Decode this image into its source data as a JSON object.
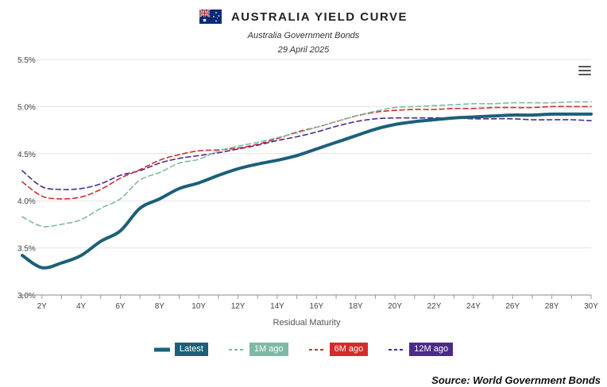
{
  "header": {
    "title": "AUSTRALIA YIELD CURVE",
    "subtitle": "Australia Government Bonds",
    "date": "29 April 2025",
    "flag_icon": "australia-flag-icon"
  },
  "menu": {
    "icon": "hamburger-menu-icon"
  },
  "source": "Source: World Government Bonds",
  "chart_data": {
    "type": "line",
    "title": "AUSTRALIA YIELD CURVE",
    "subtitle": "Australia Government Bonds",
    "xlabel": "Residual Maturity",
    "ylabel": "",
    "xlim": [
      1,
      30
    ],
    "ylim": [
      3.0,
      5.5
    ],
    "x_ticks": [
      2,
      4,
      6,
      8,
      10,
      12,
      14,
      16,
      18,
      20,
      22,
      24,
      26,
      28,
      30
    ],
    "x_tick_labels": [
      "2Y",
      "4Y",
      "6Y",
      "8Y",
      "10Y",
      "12Y",
      "14Y",
      "16Y",
      "18Y",
      "20Y",
      "22Y",
      "24Y",
      "26Y",
      "28Y",
      "30Y"
    ],
    "y_ticks": [
      3.0,
      3.5,
      4.0,
      4.5,
      5.0,
      5.5
    ],
    "y_tick_labels": [
      "3.0%",
      "3.5%",
      "4.0%",
      "4.5%",
      "5.0%",
      "5.5%"
    ],
    "grid": true,
    "legend_position": "bottom-center",
    "series": [
      {
        "name": "Latest",
        "color": "#1b6077",
        "dash": "solid",
        "x": [
          1,
          2,
          3,
          4,
          5,
          6,
          7,
          8,
          9,
          10,
          11,
          12,
          13,
          14,
          15,
          16,
          17,
          18,
          19,
          20,
          21,
          22,
          23,
          24,
          25,
          26,
          27,
          28,
          29,
          30
        ],
        "values": [
          3.42,
          3.29,
          3.34,
          3.42,
          3.57,
          3.68,
          3.92,
          4.02,
          4.13,
          4.19,
          4.27,
          4.34,
          4.39,
          4.43,
          4.48,
          4.55,
          4.62,
          4.69,
          4.76,
          4.81,
          4.84,
          4.86,
          4.88,
          4.89,
          4.9,
          4.91,
          4.91,
          4.92,
          4.92,
          4.92
        ]
      },
      {
        "name": "1M ago",
        "color": "#7fb9a6",
        "dash": "dash",
        "x": [
          1,
          2,
          3,
          4,
          5,
          6,
          7,
          8,
          9,
          10,
          11,
          12,
          13,
          14,
          15,
          16,
          17,
          18,
          19,
          20,
          21,
          22,
          23,
          24,
          25,
          26,
          27,
          28,
          29,
          30
        ],
        "values": [
          3.83,
          3.73,
          3.75,
          3.8,
          3.92,
          4.02,
          4.22,
          4.3,
          4.4,
          4.44,
          4.53,
          4.58,
          4.62,
          4.67,
          4.72,
          4.78,
          4.84,
          4.9,
          4.95,
          4.99,
          5.0,
          5.01,
          5.02,
          5.03,
          5.03,
          5.04,
          5.04,
          5.04,
          5.05,
          5.05
        ]
      },
      {
        "name": "6M ago",
        "color": "#d42a2a",
        "dash": "dash",
        "x": [
          1,
          2,
          3,
          4,
          5,
          6,
          7,
          8,
          9,
          10,
          11,
          12,
          13,
          14,
          15,
          16,
          17,
          18,
          19,
          20,
          21,
          22,
          23,
          24,
          25,
          26,
          27,
          28,
          29,
          30
        ],
        "values": [
          4.2,
          4.05,
          4.02,
          4.04,
          4.12,
          4.24,
          4.33,
          4.43,
          4.49,
          4.53,
          4.54,
          4.56,
          4.6,
          4.66,
          4.73,
          4.78,
          4.84,
          4.9,
          4.94,
          4.96,
          4.97,
          4.97,
          4.98,
          4.98,
          4.99,
          4.99,
          4.99,
          5.0,
          5.0,
          5.0
        ]
      },
      {
        "name": "12M ago",
        "color": "#4a2b8c",
        "dash": "dash",
        "x": [
          1,
          2,
          3,
          4,
          5,
          6,
          7,
          8,
          9,
          10,
          11,
          12,
          13,
          14,
          15,
          16,
          17,
          18,
          19,
          20,
          21,
          22,
          23,
          24,
          25,
          26,
          27,
          28,
          29,
          30
        ],
        "values": [
          4.32,
          4.15,
          4.12,
          4.13,
          4.18,
          4.27,
          4.32,
          4.4,
          4.45,
          4.48,
          4.51,
          4.55,
          4.59,
          4.64,
          4.68,
          4.73,
          4.79,
          4.84,
          4.87,
          4.88,
          4.88,
          4.88,
          4.88,
          4.87,
          4.87,
          4.87,
          4.86,
          4.86,
          4.86,
          4.85
        ]
      }
    ]
  }
}
